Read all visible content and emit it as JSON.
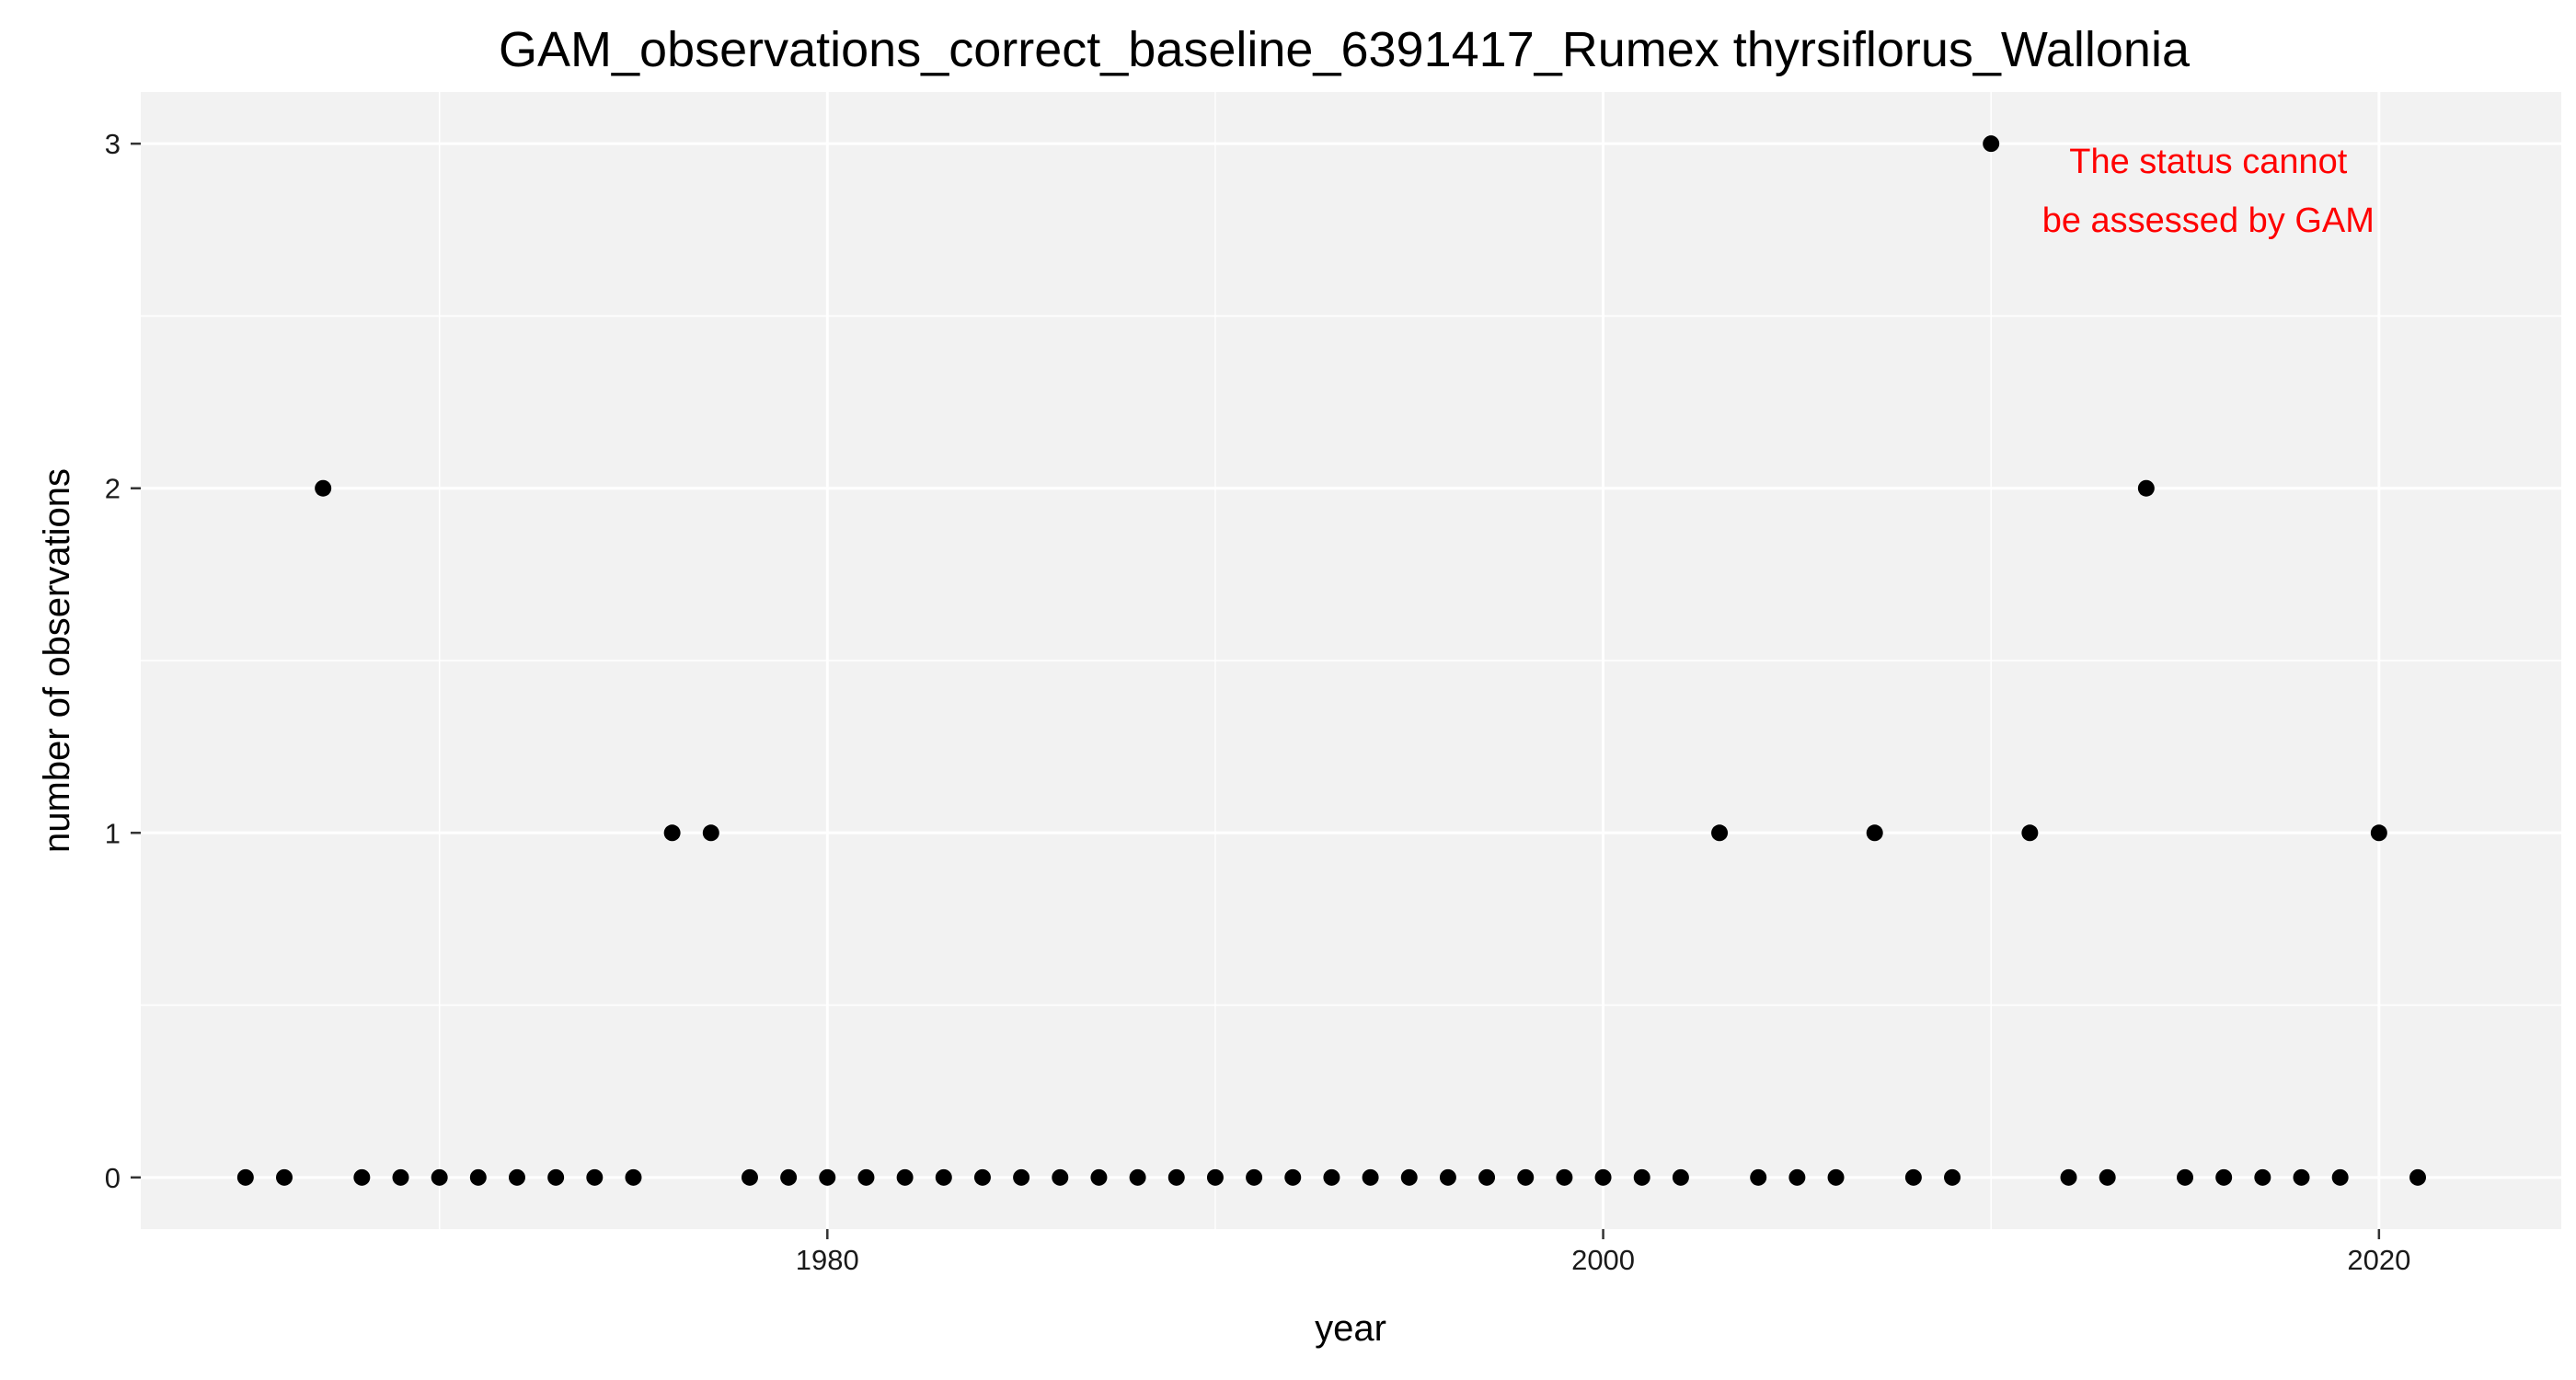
{
  "chart_data": {
    "type": "scatter",
    "title": "GAM_observations_correct_baseline_6391417_Rumex thyrsiflorus_Wallonia",
    "xlabel": "year",
    "ylabel": "number of observations",
    "xlim": [
      1962.3,
      2024.7
    ],
    "ylim": [
      -0.15,
      3.15
    ],
    "x_ticks": [
      1980,
      2000,
      2020
    ],
    "x_minor": [
      1970,
      1990,
      2010
    ],
    "y_ticks": [
      0,
      1,
      2,
      3
    ],
    "y_minor": [
      0.5,
      1.5,
      2.5
    ],
    "grid": true,
    "annotation": {
      "lines": [
        "The status cannot",
        "be assessed by GAM"
      ],
      "color": "#ff0000",
      "x": 2012,
      "y_top": 3.0
    },
    "colors": {
      "panel": "#f2f2f2",
      "grid": "#ffffff",
      "point": "#000000"
    },
    "points": [
      {
        "x": 1965,
        "y": 0
      },
      {
        "x": 1966,
        "y": 0
      },
      {
        "x": 1967,
        "y": 2
      },
      {
        "x": 1968,
        "y": 0
      },
      {
        "x": 1969,
        "y": 0
      },
      {
        "x": 1970,
        "y": 0
      },
      {
        "x": 1971,
        "y": 0
      },
      {
        "x": 1972,
        "y": 0
      },
      {
        "x": 1973,
        "y": 0
      },
      {
        "x": 1974,
        "y": 0
      },
      {
        "x": 1975,
        "y": 0
      },
      {
        "x": 1976,
        "y": 1
      },
      {
        "x": 1977,
        "y": 1
      },
      {
        "x": 1978,
        "y": 0
      },
      {
        "x": 1979,
        "y": 0
      },
      {
        "x": 1980,
        "y": 0
      },
      {
        "x": 1981,
        "y": 0
      },
      {
        "x": 1982,
        "y": 0
      },
      {
        "x": 1983,
        "y": 0
      },
      {
        "x": 1984,
        "y": 0
      },
      {
        "x": 1985,
        "y": 0
      },
      {
        "x": 1986,
        "y": 0
      },
      {
        "x": 1987,
        "y": 0
      },
      {
        "x": 1988,
        "y": 0
      },
      {
        "x": 1989,
        "y": 0
      },
      {
        "x": 1990,
        "y": 0
      },
      {
        "x": 1991,
        "y": 0
      },
      {
        "x": 1992,
        "y": 0
      },
      {
        "x": 1993,
        "y": 0
      },
      {
        "x": 1994,
        "y": 0
      },
      {
        "x": 1995,
        "y": 0
      },
      {
        "x": 1996,
        "y": 0
      },
      {
        "x": 1997,
        "y": 0
      },
      {
        "x": 1998,
        "y": 0
      },
      {
        "x": 1999,
        "y": 0
      },
      {
        "x": 2000,
        "y": 0
      },
      {
        "x": 2001,
        "y": 0
      },
      {
        "x": 2002,
        "y": 0
      },
      {
        "x": 2003,
        "y": 1
      },
      {
        "x": 2004,
        "y": 0
      },
      {
        "x": 2005,
        "y": 0
      },
      {
        "x": 2006,
        "y": 0
      },
      {
        "x": 2007,
        "y": 1
      },
      {
        "x": 2008,
        "y": 0
      },
      {
        "x": 2009,
        "y": 0
      },
      {
        "x": 2010,
        "y": 3
      },
      {
        "x": 2011,
        "y": 1
      },
      {
        "x": 2012,
        "y": 0
      },
      {
        "x": 2013,
        "y": 0
      },
      {
        "x": 2014,
        "y": 2
      },
      {
        "x": 2015,
        "y": 0
      },
      {
        "x": 2016,
        "y": 0
      },
      {
        "x": 2017,
        "y": 0
      },
      {
        "x": 2018,
        "y": 0
      },
      {
        "x": 2019,
        "y": 0
      },
      {
        "x": 2020,
        "y": 1
      },
      {
        "x": 2021,
        "y": 0
      }
    ]
  }
}
